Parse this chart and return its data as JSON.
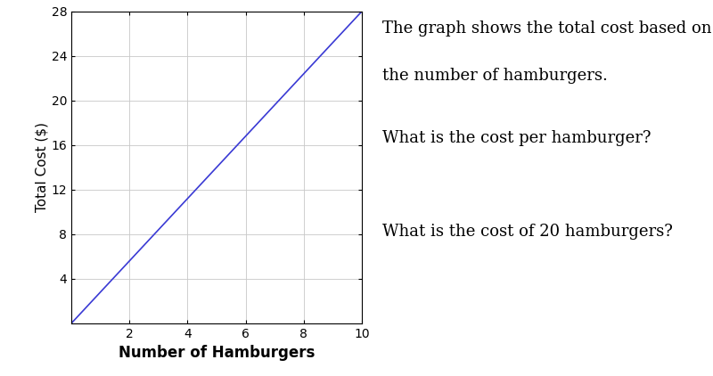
{
  "x_data": [
    0,
    10
  ],
  "y_data": [
    0,
    28
  ],
  "line_color": "#3a3ad4",
  "line_width": 1.2,
  "xlabel": "Number of Hamburgers",
  "ylabel": "Total Cost ($)",
  "xlim": [
    0,
    10
  ],
  "ylim": [
    0,
    28
  ],
  "xticks": [
    0,
    2,
    4,
    6,
    8,
    10
  ],
  "yticks": [
    4,
    8,
    12,
    16,
    20,
    24,
    28
  ],
  "xtick_labels": [
    "",
    "2",
    "4",
    "6",
    "8",
    "10"
  ],
  "ytick_labels": [
    "4",
    "8",
    "12",
    "16",
    "20",
    "24",
    "28"
  ],
  "grid_color": "#c8c8c8",
  "grid_linewidth": 0.6,
  "xlabel_fontsize": 12,
  "ylabel_fontsize": 11,
  "tick_fontsize": 10,
  "text1_line1": "The graph shows the total cost based on",
  "text1_line2": "the number of hamburgers.",
  "text2": "What is the cost per hamburger?",
  "text3": "What is the cost of 20 hamburgers?",
  "text_fontsize": 13,
  "background_color": "#ffffff"
}
